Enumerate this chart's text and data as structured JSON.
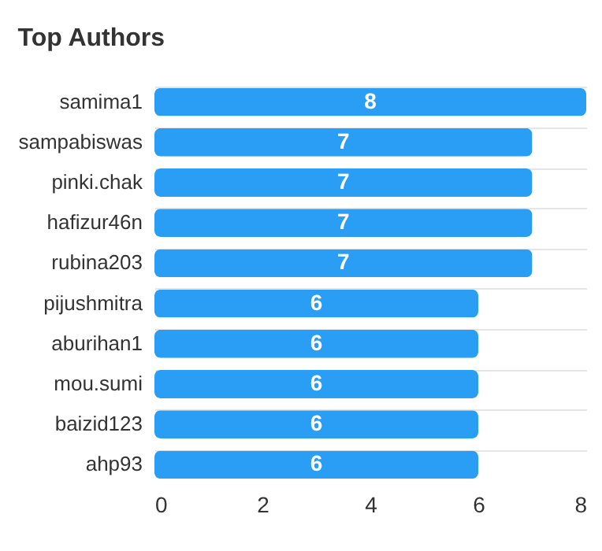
{
  "chart_data": {
    "type": "bar",
    "orientation": "horizontal",
    "title": "Top Authors",
    "categories": [
      "samima1",
      "sampabiswas",
      "pinki.chak",
      "hafizur46n",
      "rubina203",
      "pijushmitra",
      "aburihan1",
      "mou.sumi",
      "baizid123",
      "ahp93"
    ],
    "values": [
      8,
      7,
      7,
      7,
      7,
      6,
      6,
      6,
      6,
      6
    ],
    "color": "#2a9df4",
    "xlim": [
      0,
      8
    ],
    "xticks": [
      0,
      2,
      4,
      6,
      8
    ],
    "grid": "y",
    "data_labels": true
  }
}
